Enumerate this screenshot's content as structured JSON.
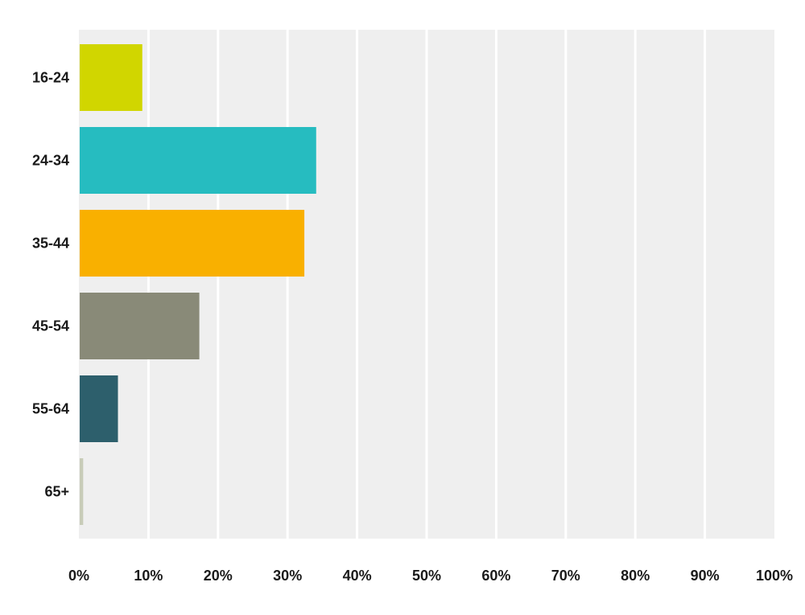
{
  "chart_data": {
    "type": "bar",
    "orientation": "horizontal",
    "categories": [
      "16-24",
      "24-34",
      "35-44",
      "45-54",
      "55-64",
      "65+"
    ],
    "values": [
      9.0,
      34.0,
      32.3,
      17.2,
      5.5,
      0.5
    ],
    "value_unit": "%",
    "colors": [
      "#d1d600",
      "#26bcc0",
      "#f9b000",
      "#898a78",
      "#2d5f6c",
      "#c8ccb8"
    ],
    "xlim": [
      0,
      100
    ],
    "x_ticks": [
      "0%",
      "10%",
      "20%",
      "30%",
      "40%",
      "50%",
      "60%",
      "70%",
      "80%",
      "90%",
      "100%"
    ],
    "grid": true,
    "plot_background": "#efefef",
    "gridline_color": "#ffffff",
    "title": "",
    "xlabel": "",
    "ylabel": ""
  }
}
